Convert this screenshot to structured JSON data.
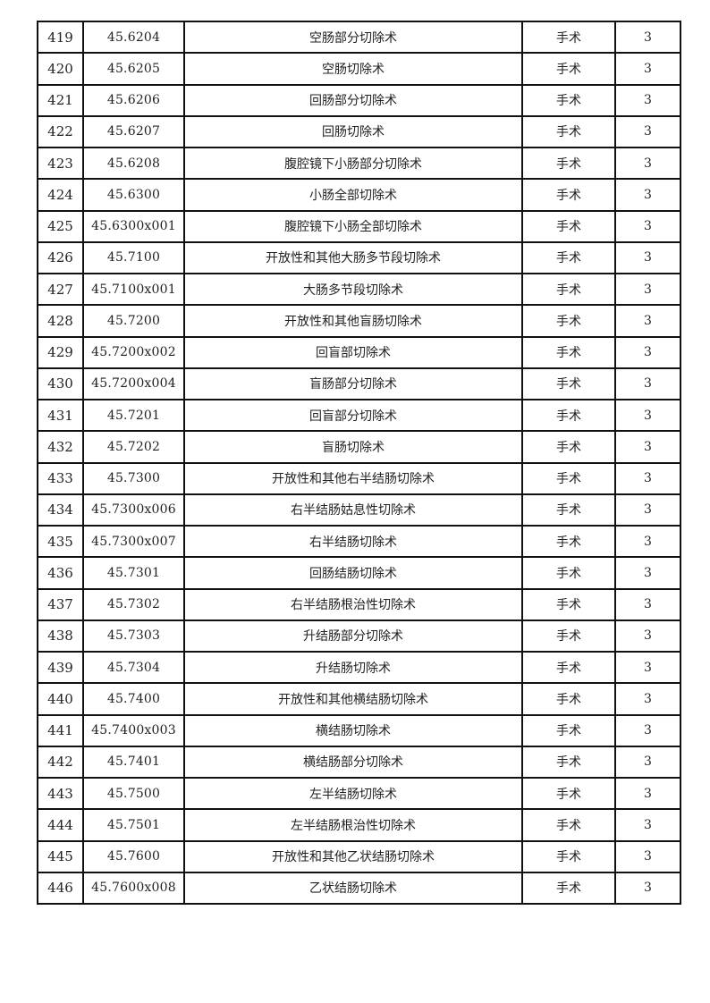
{
  "table": {
    "rows": [
      {
        "no": "419",
        "code": "45.6204",
        "name": "空肠部分切除术",
        "type": "手术",
        "level": "3"
      },
      {
        "no": "420",
        "code": "45.6205",
        "name": "空肠切除术",
        "type": "手术",
        "level": "3"
      },
      {
        "no": "421",
        "code": "45.6206",
        "name": "回肠部分切除术",
        "type": "手术",
        "level": "3"
      },
      {
        "no": "422",
        "code": "45.6207",
        "name": "回肠切除术",
        "type": "手术",
        "level": "3"
      },
      {
        "no": "423",
        "code": "45.6208",
        "name": "腹腔镜下小肠部分切除术",
        "type": "手术",
        "level": "3"
      },
      {
        "no": "424",
        "code": "45.6300",
        "name": "小肠全部切除术",
        "type": "手术",
        "level": "3"
      },
      {
        "no": "425",
        "code": "45.6300x001",
        "name": "腹腔镜下小肠全部切除术",
        "type": "手术",
        "level": "3"
      },
      {
        "no": "426",
        "code": "45.7100",
        "name": "开放性和其他大肠多节段切除术",
        "type": "手术",
        "level": "3"
      },
      {
        "no": "427",
        "code": "45.7100x001",
        "name": "大肠多节段切除术",
        "type": "手术",
        "level": "3"
      },
      {
        "no": "428",
        "code": "45.7200",
        "name": "开放性和其他盲肠切除术",
        "type": "手术",
        "level": "3"
      },
      {
        "no": "429",
        "code": "45.7200x002",
        "name": "回盲部切除术",
        "type": "手术",
        "level": "3"
      },
      {
        "no": "430",
        "code": "45.7200x004",
        "name": "盲肠部分切除术",
        "type": "手术",
        "level": "3"
      },
      {
        "no": "431",
        "code": "45.7201",
        "name": "回盲部分切除术",
        "type": "手术",
        "level": "3"
      },
      {
        "no": "432",
        "code": "45.7202",
        "name": "盲肠切除术",
        "type": "手术",
        "level": "3"
      },
      {
        "no": "433",
        "code": "45.7300",
        "name": "开放性和其他右半结肠切除术",
        "type": "手术",
        "level": "3"
      },
      {
        "no": "434",
        "code": "45.7300x006",
        "name": "右半结肠姑息性切除术",
        "type": "手术",
        "level": "3"
      },
      {
        "no": "435",
        "code": "45.7300x007",
        "name": "右半结肠切除术",
        "type": "手术",
        "level": "3"
      },
      {
        "no": "436",
        "code": "45.7301",
        "name": "回肠结肠切除术",
        "type": "手术",
        "level": "3"
      },
      {
        "no": "437",
        "code": "45.7302",
        "name": "右半结肠根治性切除术",
        "type": "手术",
        "level": "3"
      },
      {
        "no": "438",
        "code": "45.7303",
        "name": "升结肠部分切除术",
        "type": "手术",
        "level": "3"
      },
      {
        "no": "439",
        "code": "45.7304",
        "name": "升结肠切除术",
        "type": "手术",
        "level": "3"
      },
      {
        "no": "440",
        "code": "45.7400",
        "name": "开放性和其他横结肠切除术",
        "type": "手术",
        "level": "3"
      },
      {
        "no": "441",
        "code": "45.7400x003",
        "name": "横结肠切除术",
        "type": "手术",
        "level": "3"
      },
      {
        "no": "442",
        "code": "45.7401",
        "name": "横结肠部分切除术",
        "type": "手术",
        "level": "3"
      },
      {
        "no": "443",
        "code": "45.7500",
        "name": "左半结肠切除术",
        "type": "手术",
        "level": "3"
      },
      {
        "no": "444",
        "code": "45.7501",
        "name": "左半结肠根治性切除术",
        "type": "手术",
        "level": "3"
      },
      {
        "no": "445",
        "code": "45.7600",
        "name": "开放性和其他乙状结肠切除术",
        "type": "手术",
        "level": "3"
      },
      {
        "no": "446",
        "code": "45.7600x008",
        "name": "乙状结肠切除术",
        "type": "手术",
        "level": "3"
      }
    ]
  }
}
